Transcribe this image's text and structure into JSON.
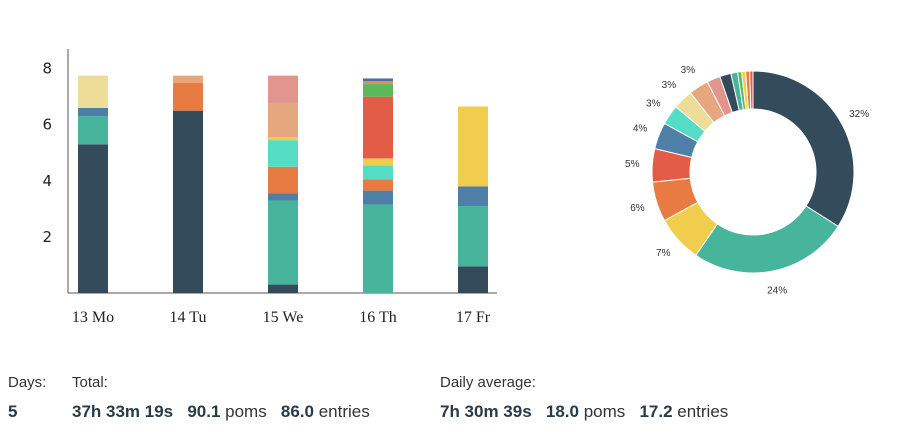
{
  "chart_data": [
    {
      "type": "bar",
      "stacked": true,
      "categories": [
        "13 Mo",
        "14 Tu",
        "15 We",
        "16 Th",
        "17 Fr"
      ],
      "yticks": [
        2,
        4,
        6,
        8
      ],
      "ylim": [
        0,
        8.7
      ],
      "series": [
        {
          "color": "#344b5c",
          "values": [
            5.3,
            6.5,
            0.3,
            0,
            0.95
          ]
        },
        {
          "color": "#47b49c",
          "values": [
            1.0,
            0,
            3.0,
            3.15,
            2.15
          ]
        },
        {
          "color": "#4e7fa6",
          "values": [
            0.3,
            0,
            0.25,
            0.5,
            0.7
          ]
        },
        {
          "color": "#eedd99",
          "values": [
            1.15,
            0,
            0,
            0,
            0
          ]
        },
        {
          "color": "#e77b42",
          "values": [
            0,
            1.0,
            0.95,
            0.4,
            0
          ]
        },
        {
          "color": "#55dcc5",
          "values": [
            0,
            0,
            0.95,
            0.5,
            0
          ]
        },
        {
          "color": "#f1cd4d",
          "values": [
            0,
            0,
            0.1,
            0.25,
            2.85
          ]
        },
        {
          "color": "#e6a67e",
          "values": [
            0,
            0.25,
            1.2,
            0,
            0
          ]
        },
        {
          "color": "#e2958c",
          "values": [
            0,
            0,
            1.0,
            0,
            0
          ]
        },
        {
          "color": "#e25c48",
          "values": [
            0,
            0,
            0,
            2.2,
            0
          ]
        },
        {
          "color": "#5cb85c",
          "values": [
            0,
            0,
            0,
            0.45,
            0
          ]
        },
        {
          "color": "#e88e5a",
          "values": [
            0,
            0,
            0,
            0.1,
            0
          ]
        },
        {
          "color": "#4a6fa0",
          "values": [
            0,
            0,
            0,
            0.1,
            0
          ]
        }
      ]
    },
    {
      "type": "pie",
      "donut": true,
      "slices": [
        {
          "value": 32,
          "label": "32%",
          "color": "#344b5c"
        },
        {
          "value": 24,
          "label": "24%",
          "color": "#47b49c"
        },
        {
          "value": 7,
          "label": "7%",
          "color": "#f1cd4d"
        },
        {
          "value": 6,
          "label": "6%",
          "color": "#e77b42"
        },
        {
          "value": 5,
          "label": "5%",
          "color": "#e25c48"
        },
        {
          "value": 4,
          "label": "4%",
          "color": "#4e7fa6"
        },
        {
          "value": 3,
          "label": "3%",
          "color": "#55dcc5"
        },
        {
          "value": 3,
          "label": "3%",
          "color": "#eedd99"
        },
        {
          "value": 3,
          "label": "3%",
          "color": "#e6a67e"
        },
        {
          "value": 2,
          "label": "",
          "color": "#e2958c"
        },
        {
          "value": 1.7,
          "label": "",
          "color": "#344b5c"
        },
        {
          "value": 1.0,
          "label": "",
          "color": "#47b49c"
        },
        {
          "value": 0.6,
          "label": "",
          "color": "#5cb85c"
        },
        {
          "value": 0.6,
          "label": "",
          "color": "#f1cd4d"
        },
        {
          "value": 0.6,
          "label": "",
          "color": "#e77b42"
        },
        {
          "value": 0.5,
          "label": "",
          "color": "#e25c48"
        }
      ]
    }
  ],
  "stats": {
    "days_label": "Days:",
    "days_value": "5",
    "total_label": "Total:",
    "total_time": "37h 33m 19s",
    "total_poms_num": "90.1",
    "total_poms_unit": "poms",
    "total_entries_num": "86.0",
    "total_entries_unit": "entries",
    "avg_label": "Daily average:",
    "avg_time": "7h 30m 39s",
    "avg_poms_num": "18.0",
    "avg_poms_unit": "poms",
    "avg_entries_num": "17.2",
    "avg_entries_unit": "entries"
  }
}
